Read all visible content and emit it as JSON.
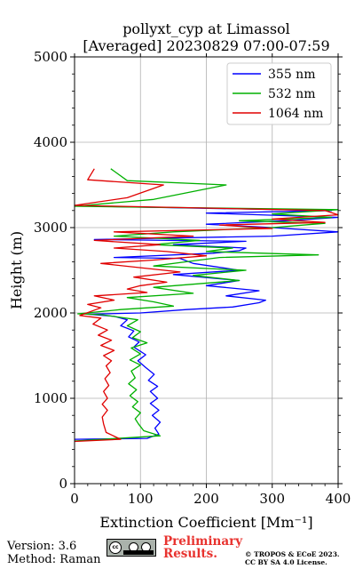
{
  "chart_data": {
    "type": "line",
    "title": "pollyxt_cyp at Limassol",
    "subtitle": "[Averaged] 20230829 07:00-07:59",
    "xlabel": "Extinction Coefficient [Mm⁻¹]",
    "ylabel": "Height (m)",
    "xlim": [
      0,
      400
    ],
    "ylim": [
      0,
      5000
    ],
    "x_ticks": [
      "0",
      "100",
      "200",
      "300",
      "400"
    ],
    "y_ticks": [
      "0",
      "1000",
      "2000",
      "3000",
      "4000",
      "5000"
    ],
    "grid": true,
    "legend_position": "top-right",
    "series": [
      {
        "name": "355 nm",
        "color": "#0000ff",
        "points": [
          [
            0,
            520
          ],
          [
            110,
            530
          ],
          [
            128,
            580
          ],
          [
            122,
            650
          ],
          [
            130,
            720
          ],
          [
            118,
            800
          ],
          [
            128,
            860
          ],
          [
            115,
            940
          ],
          [
            126,
            1000
          ],
          [
            115,
            1080
          ],
          [
            126,
            1140
          ],
          [
            112,
            1210
          ],
          [
            121,
            1280
          ],
          [
            108,
            1360
          ],
          [
            96,
            1440
          ],
          [
            108,
            1510
          ],
          [
            90,
            1600
          ],
          [
            98,
            1660
          ],
          [
            82,
            1720
          ],
          [
            90,
            1790
          ],
          [
            70,
            1850
          ],
          [
            80,
            1920
          ],
          [
            60,
            1960
          ],
          [
            20,
            1985
          ],
          [
            100,
            2000
          ],
          [
            170,
            2040
          ],
          [
            240,
            2070
          ],
          [
            280,
            2120
          ],
          [
            290,
            2150
          ],
          [
            230,
            2200
          ],
          [
            280,
            2260
          ],
          [
            200,
            2320
          ],
          [
            250,
            2380
          ],
          [
            150,
            2450
          ],
          [
            250,
            2500
          ],
          [
            180,
            2580
          ],
          [
            160,
            2640
          ],
          [
            60,
            2650
          ],
          [
            210,
            2700
          ],
          [
            250,
            2730
          ],
          [
            260,
            2760
          ],
          [
            150,
            2800
          ],
          [
            260,
            2840
          ],
          [
            30,
            2860
          ],
          [
            300,
            2900
          ],
          [
            400,
            2950
          ],
          [
            300,
            3000
          ],
          [
            200,
            3040
          ],
          [
            320,
            3080
          ],
          [
            400,
            3120
          ],
          [
            200,
            3170
          ],
          [
            390,
            3200
          ],
          [
            30,
            3250
          ]
        ]
      },
      {
        "name": "532 nm",
        "color": "#00b000",
        "points": [
          [
            0,
            500
          ],
          [
            130,
            560
          ],
          [
            105,
            620
          ],
          [
            97,
            700
          ],
          [
            92,
            760
          ],
          [
            100,
            830
          ],
          [
            88,
            900
          ],
          [
            96,
            960
          ],
          [
            84,
            1030
          ],
          [
            94,
            1100
          ],
          [
            82,
            1170
          ],
          [
            92,
            1240
          ],
          [
            86,
            1320
          ],
          [
            100,
            1390
          ],
          [
            84,
            1450
          ],
          [
            100,
            1520
          ],
          [
            86,
            1590
          ],
          [
            110,
            1650
          ],
          [
            88,
            1710
          ],
          [
            100,
            1780
          ],
          [
            80,
            1850
          ],
          [
            96,
            1920
          ],
          [
            40,
            1980
          ],
          [
            5,
            1990
          ],
          [
            70,
            2040
          ],
          [
            150,
            2080
          ],
          [
            120,
            2130
          ],
          [
            80,
            2180
          ],
          [
            180,
            2230
          ],
          [
            120,
            2300
          ],
          [
            250,
            2380
          ],
          [
            180,
            2440
          ],
          [
            260,
            2500
          ],
          [
            120,
            2550
          ],
          [
            170,
            2600
          ],
          [
            220,
            2650
          ],
          [
            370,
            2680
          ],
          [
            200,
            2720
          ],
          [
            240,
            2760
          ],
          [
            120,
            2800
          ],
          [
            190,
            2850
          ],
          [
            60,
            2900
          ],
          [
            150,
            2950
          ],
          [
            300,
            3000
          ],
          [
            380,
            3050
          ],
          [
            250,
            3080
          ],
          [
            390,
            3120
          ],
          [
            300,
            3160
          ],
          [
            400,
            3210
          ],
          [
            0,
            3250
          ],
          [
            120,
            3330
          ],
          [
            230,
            3500
          ],
          [
            80,
            3550
          ],
          [
            55,
            3690
          ]
        ]
      },
      {
        "name": "1064 nm",
        "color": "#e00000",
        "points": [
          [
            0,
            495
          ],
          [
            70,
            520
          ],
          [
            48,
            600
          ],
          [
            44,
            700
          ],
          [
            42,
            780
          ],
          [
            50,
            860
          ],
          [
            42,
            930
          ],
          [
            50,
            1000
          ],
          [
            44,
            1080
          ],
          [
            52,
            1150
          ],
          [
            46,
            1230
          ],
          [
            54,
            1300
          ],
          [
            48,
            1380
          ],
          [
            56,
            1440
          ],
          [
            44,
            1500
          ],
          [
            60,
            1560
          ],
          [
            40,
            1620
          ],
          [
            56,
            1680
          ],
          [
            36,
            1740
          ],
          [
            50,
            1800
          ],
          [
            28,
            1870
          ],
          [
            40,
            1940
          ],
          [
            8,
            1970
          ],
          [
            40,
            2060
          ],
          [
            20,
            2100
          ],
          [
            60,
            2150
          ],
          [
            30,
            2200
          ],
          [
            110,
            2240
          ],
          [
            80,
            2280
          ],
          [
            100,
            2320
          ],
          [
            140,
            2360
          ],
          [
            90,
            2420
          ],
          [
            160,
            2480
          ],
          [
            100,
            2530
          ],
          [
            40,
            2580
          ],
          [
            120,
            2620
          ],
          [
            200,
            2670
          ],
          [
            140,
            2720
          ],
          [
            60,
            2760
          ],
          [
            130,
            2800
          ],
          [
            30,
            2850
          ],
          [
            180,
            2900
          ],
          [
            60,
            2950
          ],
          [
            300,
            2990
          ],
          [
            220,
            3030
          ],
          [
            380,
            3060
          ],
          [
            300,
            3100
          ],
          [
            400,
            3150
          ],
          [
            380,
            3200
          ],
          [
            0,
            3260
          ],
          [
            80,
            3350
          ],
          [
            135,
            3500
          ],
          [
            20,
            3560
          ],
          [
            30,
            3690
          ]
        ]
      }
    ]
  },
  "footer": {
    "version": "Version: 3.6",
    "method": "Method: Raman",
    "preliminary_line1": "Preliminary",
    "preliminary_line2": "Results.",
    "copyright_line1": "© TROPOS & ECoE 2023.",
    "copyright_line2": "CC BY SA 4.0 License.",
    "cc_logo": "cc-by-sa-icon"
  }
}
